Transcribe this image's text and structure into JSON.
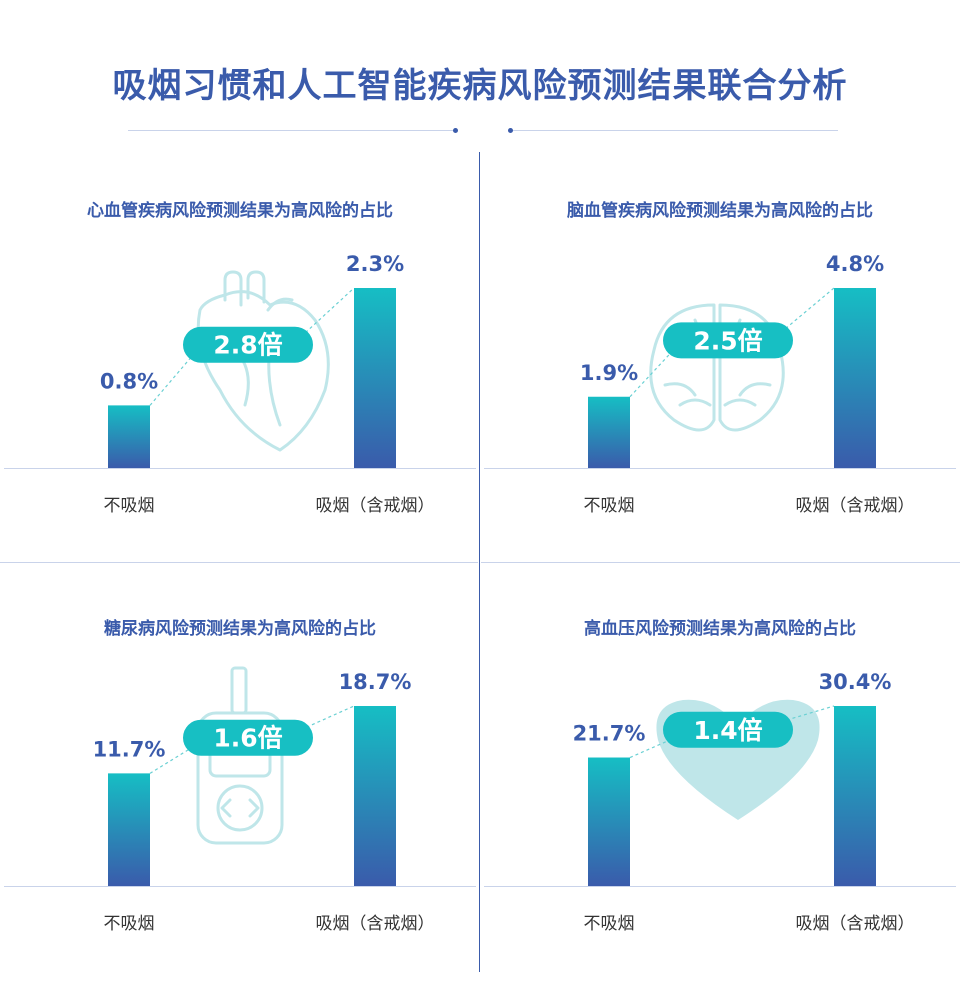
{
  "title": "吸烟习惯和人工智能疾病风险预测结果联合分析",
  "colors": {
    "title": "#3a5bab",
    "bar_top": "#16bec4",
    "bar_bottom": "#3a5bab",
    "pill": "#17bfc3",
    "icon": "#bfe6e9"
  },
  "chart_data": [
    {
      "type": "bar",
      "title": "心血管疾病风险预测结果为高风险的占比",
      "icon": "heart-organ-icon",
      "categories": [
        "不吸烟",
        "吸烟（含戒烟）"
      ],
      "values": [
        0.8,
        2.3
      ],
      "value_labels": [
        "0.8%",
        "2.3%"
      ],
      "ratio_label": "2.8倍"
    },
    {
      "type": "bar",
      "title": "脑血管疾病风险预测结果为高风险的占比",
      "icon": "brain-icon",
      "categories": [
        "不吸烟",
        "吸烟（含戒烟）"
      ],
      "values": [
        1.9,
        4.8
      ],
      "value_labels": [
        "1.9%",
        "4.8%"
      ],
      "ratio_label": "2.5倍"
    },
    {
      "type": "bar",
      "title": "糖尿病风险预测结果为高风险的占比",
      "icon": "glucose-meter-icon",
      "categories": [
        "不吸烟",
        "吸烟（含戒烟）"
      ],
      "values": [
        11.7,
        18.7
      ],
      "value_labels": [
        "11.7%",
        "18.7%"
      ],
      "ratio_label": "1.6倍"
    },
    {
      "type": "bar",
      "title": "高血压风险预测结果为高风险的占比",
      "icon": "heart-shape-icon",
      "categories": [
        "不吸烟",
        "吸烟（含戒烟）"
      ],
      "values": [
        21.7,
        30.4
      ],
      "value_labels": [
        "21.7%",
        "30.4%"
      ],
      "ratio_label": "1.4倍"
    }
  ]
}
